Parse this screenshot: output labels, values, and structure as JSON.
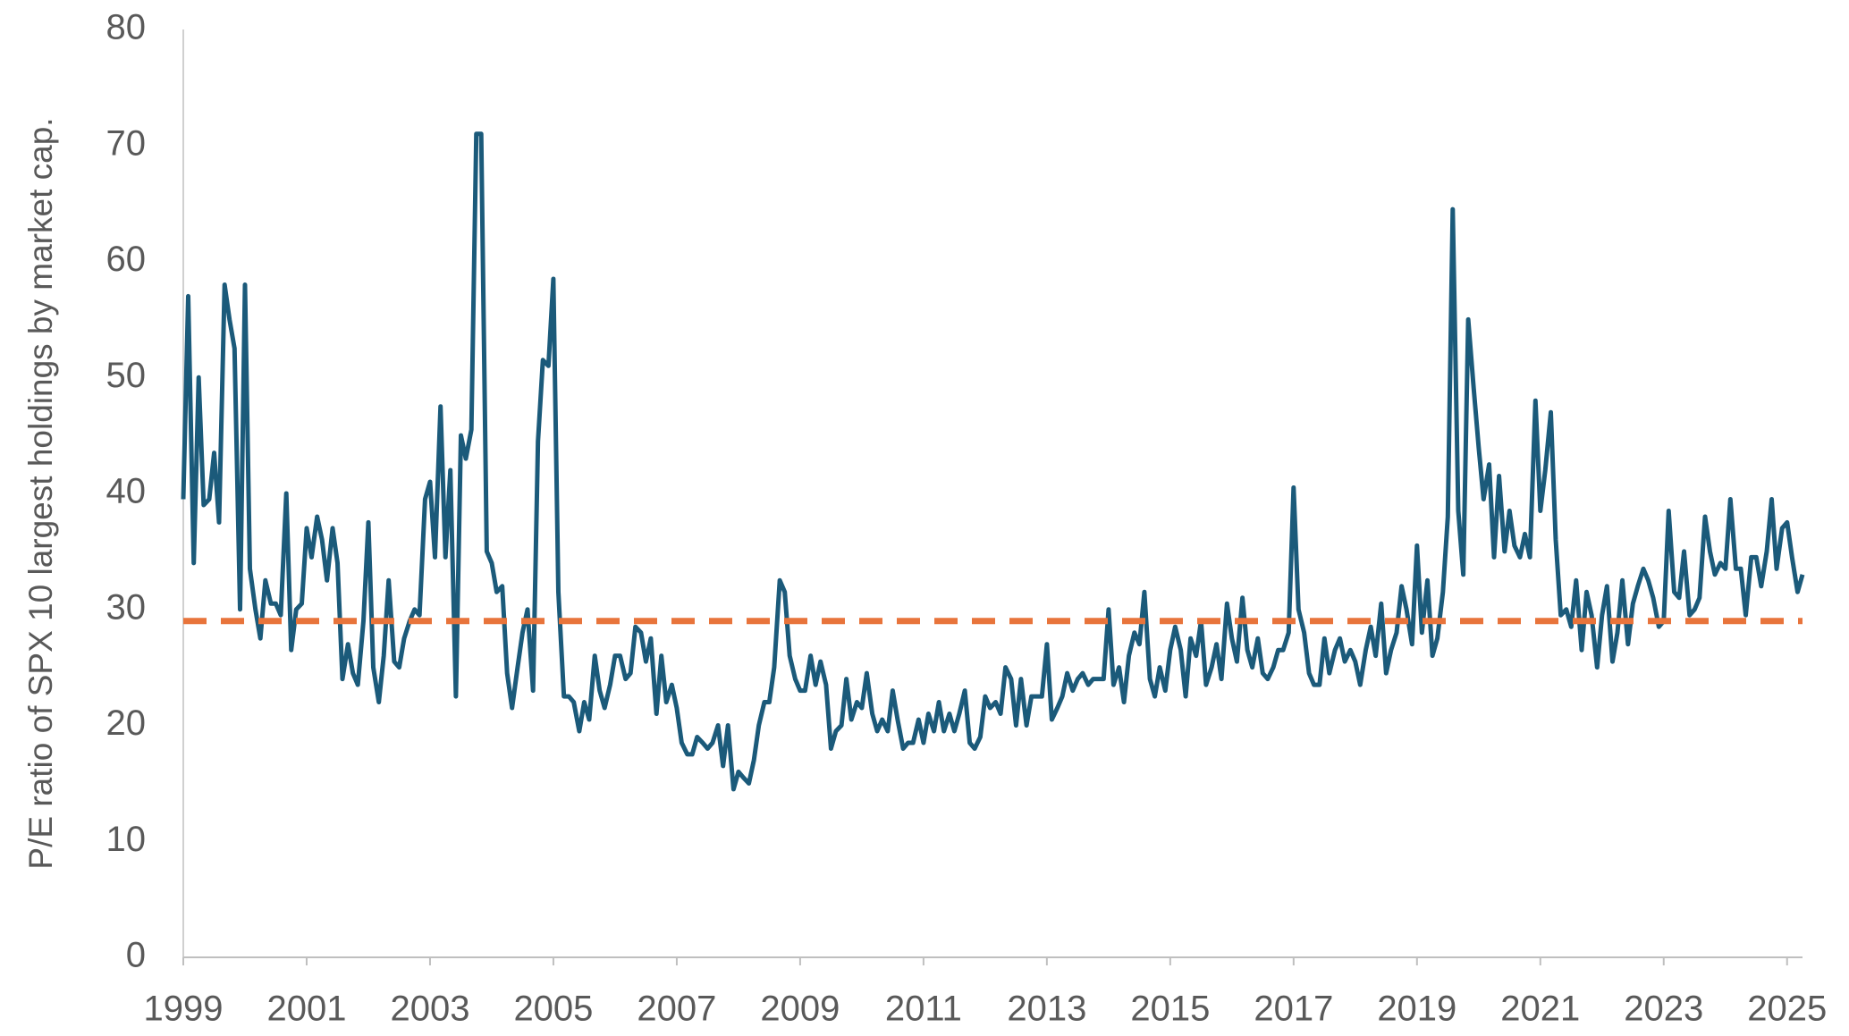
{
  "chart_data": {
    "type": "line",
    "y_label": "P/E ratio of SPX 10 largest holdings by market cap.",
    "x": [
      1999,
      1999.08,
      1999.17,
      1999.25,
      1999.33,
      1999.42,
      1999.5,
      1999.58,
      1999.67,
      1999.75,
      1999.83,
      1999.92,
      2000,
      2000.08,
      2000.17,
      2000.25,
      2000.33,
      2000.42,
      2000.5,
      2000.58,
      2000.67,
      2000.75,
      2000.83,
      2000.92,
      2001,
      2001.08,
      2001.17,
      2001.25,
      2001.33,
      2001.42,
      2001.5,
      2001.58,
      2001.67,
      2001.75,
      2001.83,
      2001.92,
      2002,
      2002.08,
      2002.17,
      2002.25,
      2002.33,
      2002.42,
      2002.5,
      2002.58,
      2002.67,
      2002.75,
      2002.83,
      2002.92,
      2003,
      2003.08,
      2003.17,
      2003.25,
      2003.33,
      2003.42,
      2003.5,
      2003.58,
      2003.67,
      2003.75,
      2003.83,
      2003.92,
      2004,
      2004.08,
      2004.17,
      2004.25,
      2004.33,
      2004.42,
      2004.5,
      2004.58,
      2004.67,
      2004.75,
      2004.83,
      2004.92,
      2005,
      2005.08,
      2005.17,
      2005.25,
      2005.33,
      2005.42,
      2005.5,
      2005.58,
      2005.67,
      2005.75,
      2005.83,
      2005.92,
      2006,
      2006.08,
      2006.17,
      2006.25,
      2006.33,
      2006.42,
      2006.5,
      2006.58,
      2006.67,
      2006.75,
      2006.83,
      2006.92,
      2007,
      2007.08,
      2007.17,
      2007.25,
      2007.33,
      2007.42,
      2007.5,
      2007.58,
      2007.67,
      2007.75,
      2007.83,
      2007.92,
      2008,
      2008.08,
      2008.17,
      2008.25,
      2008.33,
      2008.42,
      2008.5,
      2008.58,
      2008.67,
      2008.75,
      2008.83,
      2008.92,
      2009,
      2009.08,
      2009.17,
      2009.25,
      2009.33,
      2009.42,
      2009.5,
      2009.58,
      2009.67,
      2009.75,
      2009.83,
      2009.92,
      2010,
      2010.08,
      2010.17,
      2010.25,
      2010.33,
      2010.42,
      2010.5,
      2010.58,
      2010.67,
      2010.75,
      2010.83,
      2010.92,
      2011,
      2011.08,
      2011.17,
      2011.25,
      2011.33,
      2011.42,
      2011.5,
      2011.58,
      2011.67,
      2011.75,
      2011.83,
      2011.92,
      2012,
      2012.08,
      2012.17,
      2012.25,
      2012.33,
      2012.42,
      2012.5,
      2012.58,
      2012.67,
      2012.75,
      2012.83,
      2012.92,
      2013,
      2013.08,
      2013.17,
      2013.25,
      2013.33,
      2013.42,
      2013.5,
      2013.58,
      2013.67,
      2013.75,
      2013.83,
      2013.92,
      2014,
      2014.08,
      2014.17,
      2014.25,
      2014.33,
      2014.42,
      2014.5,
      2014.58,
      2014.67,
      2014.75,
      2014.83,
      2014.92,
      2015,
      2015.08,
      2015.17,
      2015.25,
      2015.33,
      2015.42,
      2015.5,
      2015.58,
      2015.67,
      2015.75,
      2015.83,
      2015.92,
      2016,
      2016.08,
      2016.17,
      2016.25,
      2016.33,
      2016.42,
      2016.5,
      2016.58,
      2016.67,
      2016.75,
      2016.83,
      2016.92,
      2017,
      2017.08,
      2017.17,
      2017.25,
      2017.33,
      2017.42,
      2017.5,
      2017.58,
      2017.67,
      2017.75,
      2017.83,
      2017.92,
      2018,
      2018.08,
      2018.17,
      2018.25,
      2018.33,
      2018.42,
      2018.5,
      2018.58,
      2018.67,
      2018.75,
      2018.83,
      2018.92,
      2019,
      2019.08,
      2019.17,
      2019.25,
      2019.33,
      2019.42,
      2019.5,
      2019.58,
      2019.67,
      2019.75,
      2019.83,
      2019.92,
      2020,
      2020.08,
      2020.17,
      2020.25,
      2020.33,
      2020.42,
      2020.5,
      2020.58,
      2020.67,
      2020.75,
      2020.83,
      2020.92,
      2021,
      2021.08,
      2021.17,
      2021.25,
      2021.33,
      2021.42,
      2021.5,
      2021.58,
      2021.67,
      2021.75,
      2021.83,
      2021.92,
      2022,
      2022.08,
      2022.17,
      2022.25,
      2022.33,
      2022.42,
      2022.5,
      2022.58,
      2022.67,
      2022.75,
      2022.83,
      2022.92,
      2023,
      2023.08,
      2023.17,
      2023.25,
      2023.33,
      2023.42,
      2023.5,
      2023.58,
      2023.67,
      2023.75,
      2023.83,
      2023.92,
      2024,
      2024.08,
      2024.17,
      2024.25,
      2024.33,
      2024.42,
      2024.5,
      2024.58,
      2024.67,
      2024.75,
      2024.83,
      2024.92,
      2025,
      2025.08,
      2025.17,
      2025.25
    ],
    "series": [
      {
        "color": "#1b5a7a",
        "values": [
          39.5,
          57,
          34,
          50,
          39,
          39.5,
          43.5,
          37.5,
          58,
          55,
          52.5,
          30,
          58,
          33.5,
          30,
          27.5,
          32.5,
          30.5,
          30.5,
          29.5,
          40,
          26.5,
          30,
          30.5,
          37,
          34.5,
          38,
          36,
          32.5,
          37,
          34,
          24,
          27,
          24.5,
          23.5,
          29,
          37.5,
          25,
          22,
          26,
          32.5,
          25.5,
          25,
          27.5,
          29,
          30,
          29.5,
          39.5,
          41,
          34.5,
          47.5,
          34.5,
          42,
          22.5,
          45,
          43,
          45.5,
          71,
          71,
          35,
          34,
          31.5,
          32,
          24.5,
          21.5,
          25,
          28,
          30,
          23,
          44.5,
          51.5,
          51,
          58.5,
          31.5,
          22.5,
          22.5,
          22,
          19.5,
          22,
          20.5,
          26,
          23,
          21.5,
          23.5,
          26,
          26,
          24,
          24.5,
          28.5,
          28,
          25.5,
          27.5,
          21,
          26,
          22,
          23.5,
          21.5,
          18.5,
          17.5,
          17.5,
          19,
          18.5,
          18,
          18.5,
          20,
          16.5,
          20,
          14.5,
          16,
          15.5,
          15,
          17,
          20,
          22,
          22,
          25,
          32.5,
          31.5,
          26,
          24,
          23,
          23,
          26,
          23.5,
          25.5,
          23.5,
          18,
          19.5,
          20,
          24,
          20.5,
          22,
          21.5,
          24.5,
          21,
          19.5,
          20.5,
          19.5,
          23,
          20.5,
          18,
          18.5,
          18.5,
          20.5,
          18.5,
          21,
          19.5,
          22,
          19.5,
          21,
          19.5,
          21,
          23,
          18.5,
          18,
          19,
          22.5,
          21.5,
          22,
          21,
          25,
          24,
          20,
          24,
          20,
          22.5,
          22.5,
          22.5,
          27,
          20.5,
          21.5,
          22.5,
          24.5,
          23,
          24,
          24.5,
          23.5,
          24,
          24,
          24,
          30,
          23.5,
          25,
          22,
          26,
          28,
          27,
          31.5,
          24,
          22.5,
          25,
          23,
          26.5,
          28.5,
          26.5,
          22.5,
          27.5,
          26,
          29,
          23.5,
          25,
          27,
          24,
          30.5,
          27.5,
          25.5,
          31,
          26.5,
          25,
          27.5,
          24.5,
          24,
          25,
          26.5,
          26.5,
          28,
          40.5,
          30,
          28,
          24.5,
          23.5,
          23.5,
          27.5,
          24.5,
          26.5,
          27.5,
          25.5,
          26.5,
          25.5,
          23.5,
          26.5,
          28.5,
          26,
          30.5,
          24.5,
          26.5,
          28,
          32,
          30,
          27,
          35.5,
          28,
          32.5,
          26,
          27.5,
          31.5,
          38,
          64.5,
          38.5,
          33,
          55,
          49,
          44,
          39.5,
          42.5,
          34.5,
          41.5,
          35,
          38.5,
          35.5,
          34.5,
          36.5,
          34.5,
          48,
          38.5,
          42,
          47,
          36,
          29.5,
          30,
          28.5,
          32.5,
          26.5,
          31.5,
          29.5,
          25,
          29.5,
          32,
          25.5,
          28,
          32.5,
          27,
          30.5,
          32,
          33.5,
          32.5,
          31,
          28.5,
          29,
          38.5,
          31.5,
          31,
          35,
          29.5,
          30,
          31,
          38,
          35,
          33,
          34,
          33.5,
          39.5,
          33.5,
          33.5,
          29.5,
          34.5,
          34.5,
          32,
          35,
          39.5,
          33.5,
          37,
          37.5,
          34.5,
          31.5,
          33
        ]
      }
    ],
    "reference_line": {
      "value": 29,
      "color": "#e8743b",
      "dashed": true
    },
    "xlim": [
      1999,
      2025.25
    ],
    "xticks": [
      1999,
      2001,
      2003,
      2005,
      2007,
      2009,
      2011,
      2013,
      2015,
      2017,
      2019,
      2021,
      2023,
      2025
    ],
    "ylim": [
      0,
      80
    ],
    "yticks": [
      0,
      10,
      20,
      30,
      40,
      50,
      60,
      70,
      80
    ],
    "grid": false
  }
}
